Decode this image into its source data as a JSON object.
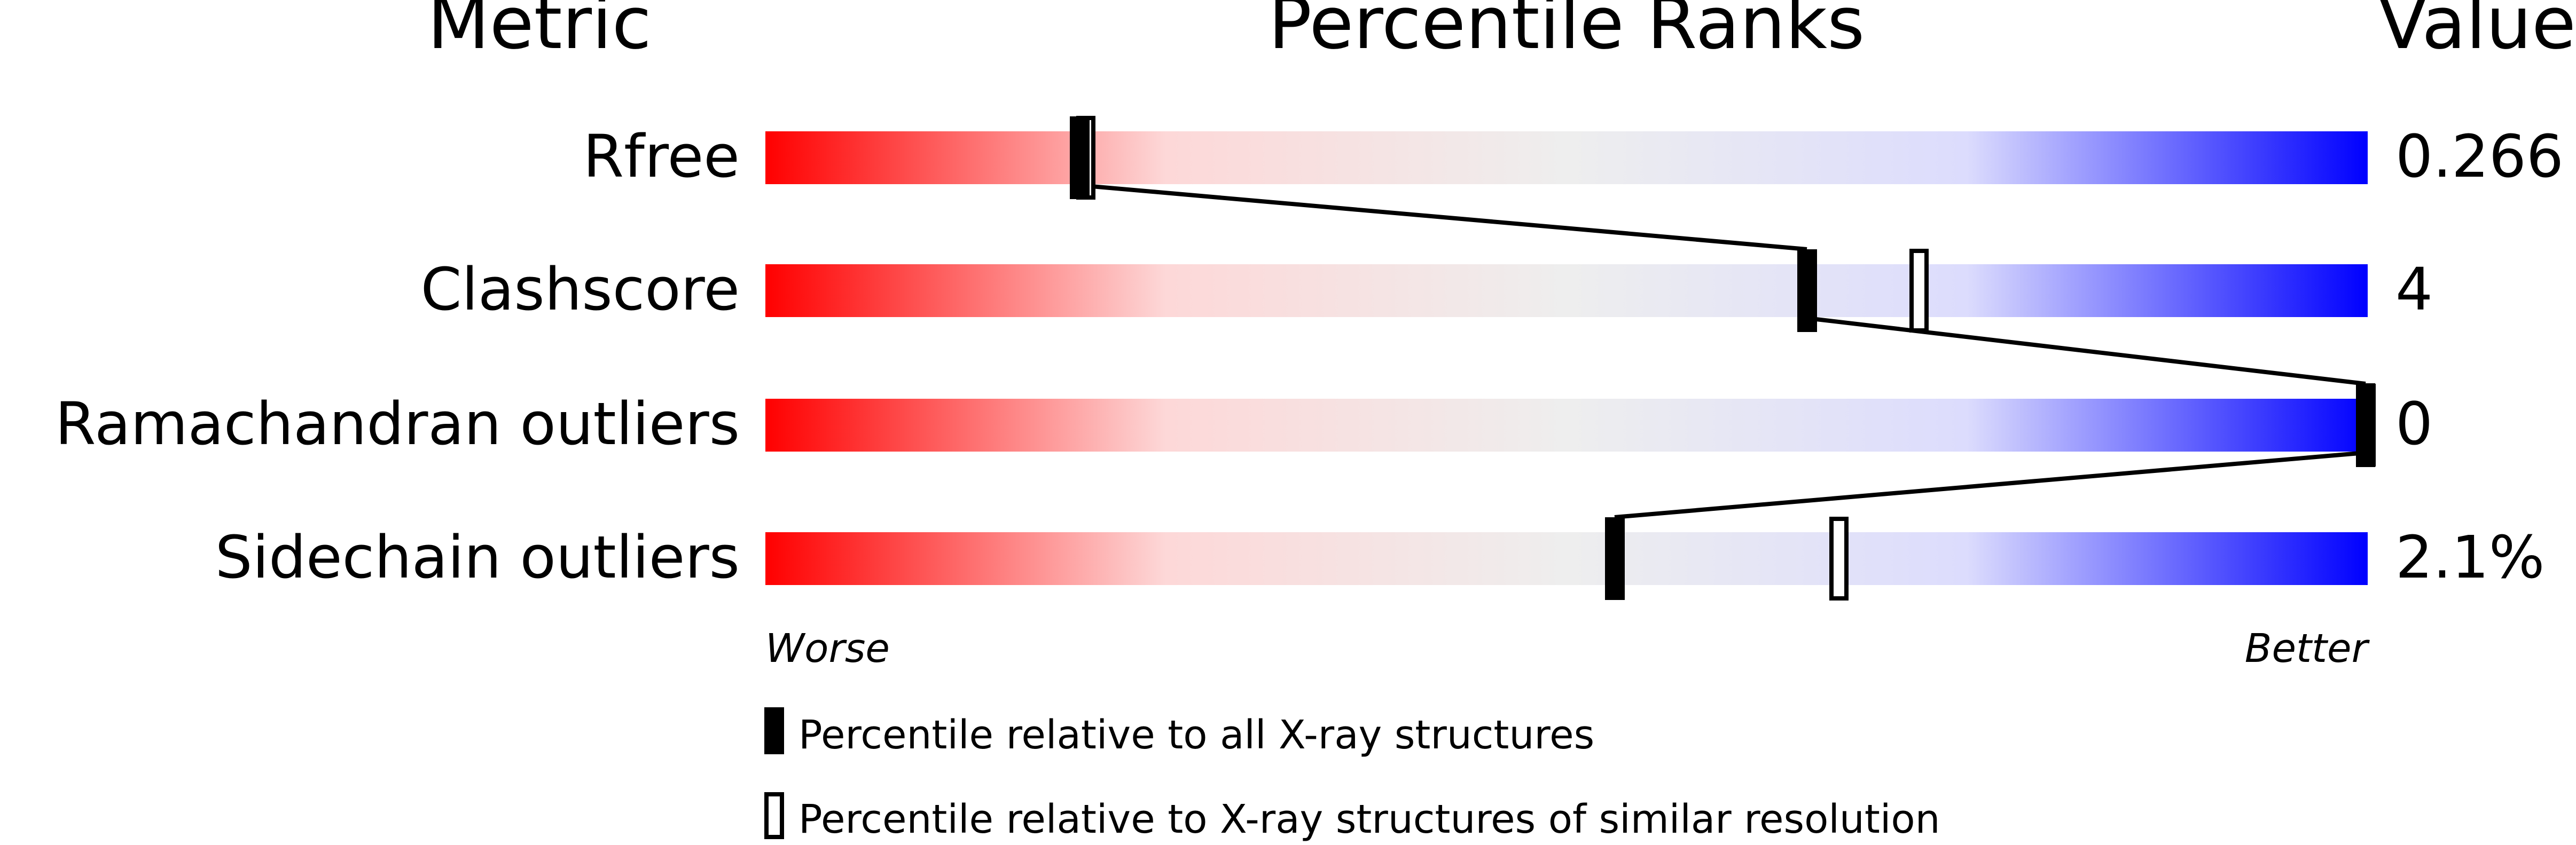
{
  "chart_data": {
    "type": "bar",
    "headers": {
      "metric": "Metric",
      "percentile": "Percentile Ranks",
      "value": "Value"
    },
    "axis": {
      "left_label": "Worse",
      "right_label": "Better",
      "range": [
        0,
        100
      ]
    },
    "gradient_colors": [
      "#ff0000",
      "#fdd8d8",
      "#eeeeee",
      "#dcdcfd",
      "#0000ff"
    ],
    "metrics": [
      {
        "name": "Rfree",
        "value": "0.266",
        "percentile_all": 19.6,
        "percentile_similar": 20
      },
      {
        "name": "Clashscore",
        "value": "4",
        "percentile_all": 65,
        "percentile_similar": 72
      },
      {
        "name": "Ramachandran outliers",
        "value": "0",
        "percentile_all": 100,
        "percentile_similar": 100
      },
      {
        "name": "Sidechain outliers",
        "value": "2.1%",
        "percentile_all": 53,
        "percentile_similar": 67
      }
    ],
    "legend": [
      {
        "marker": "filled",
        "label": "Percentile relative to all X-ray structures"
      },
      {
        "marker": "hollow",
        "label": "Percentile relative to X-ray structures of similar resolution"
      }
    ]
  }
}
